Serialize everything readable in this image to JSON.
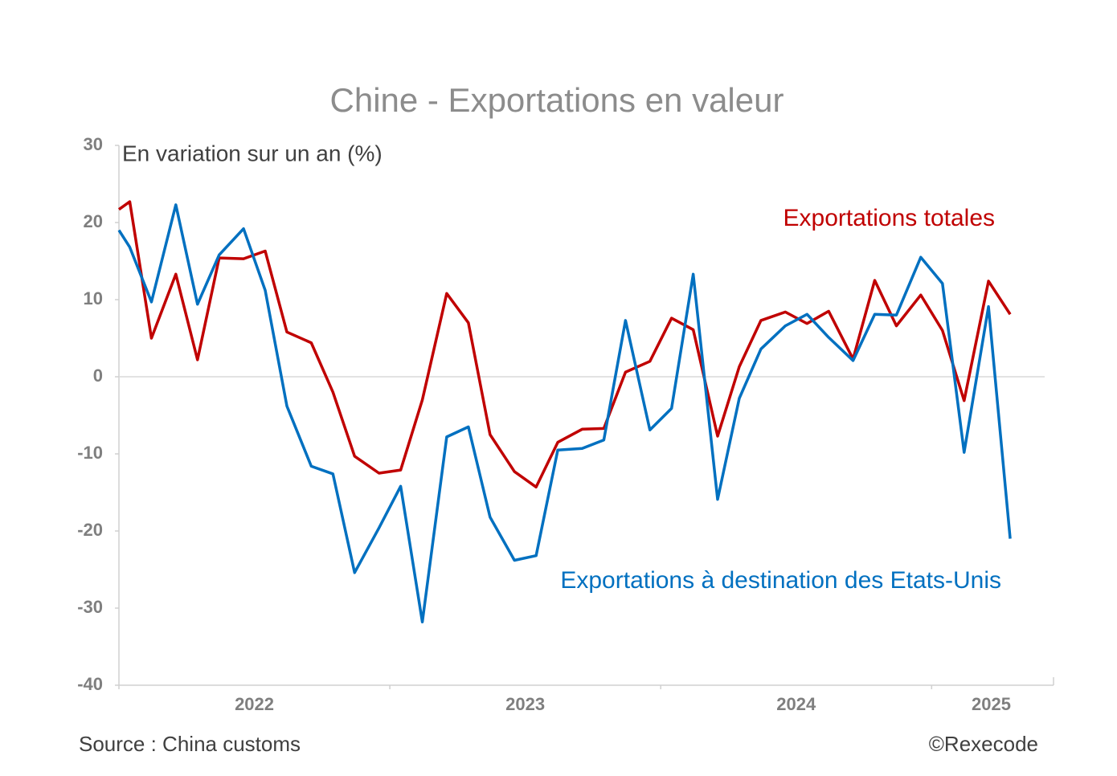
{
  "chart_data": {
    "type": "line",
    "title": "Chine - Exportations en valeur",
    "subtitle": "En variation sur un an (%)",
    "source": "Source : China customs",
    "credit": "©Rexecode",
    "x": [
      2022.0,
      2022.04,
      2022.12,
      2022.21,
      2022.29,
      2022.37,
      2022.46,
      2022.54,
      2022.62,
      2022.71,
      2022.79,
      2022.87,
      2022.96,
      2023.04,
      2023.12,
      2023.21,
      2023.29,
      2023.37,
      2023.46,
      2023.54,
      2023.62,
      2023.71,
      2023.79,
      2023.87,
      2023.96,
      2024.04,
      2024.12,
      2024.21,
      2024.29,
      2024.37,
      2024.46,
      2024.54,
      2024.62,
      2024.71,
      2024.79,
      2024.87,
      2024.96,
      2025.04,
      2025.12,
      2025.21,
      2025.29
    ],
    "series": [
      {
        "name": "Exportations totales",
        "color": "#c00000",
        "values": [
          21.7,
          22.7,
          5,
          13.3,
          2.2,
          15.4,
          15.3,
          16.3,
          5.8,
          4.4,
          -2,
          -10.3,
          -12.5,
          -12.1,
          -3,
          10.8,
          7,
          -7.5,
          -12.3,
          -14.3,
          -8.5,
          -6.8,
          -6.7,
          0.6,
          2,
          7.6,
          6.1,
          -7.7,
          1.3,
          7.3,
          8.4,
          6.9,
          8.5,
          2.3,
          12.5,
          6.6,
          10.6,
          6,
          -3.1,
          12.4,
          8.1
        ]
      },
      {
        "name": "Exportations à destination des Etats-Unis",
        "color": "#0070c0",
        "values": [
          19,
          16.8,
          9.7,
          22.3,
          9.4,
          15.8,
          19.2,
          11.2,
          -3.8,
          -11.6,
          -12.6,
          -25.4,
          -19.6,
          -14.2,
          -31.8,
          -7.8,
          -6.5,
          -18.2,
          -23.8,
          -23.2,
          -9.5,
          -9.3,
          -8.2,
          7.3,
          -6.9,
          -4.1,
          13.3,
          -15.9,
          -2.8,
          3.6,
          6.6,
          8.1,
          5.1,
          2.1,
          8.1,
          8,
          15.5,
          12.1,
          -9.8,
          9.1,
          -21
        ]
      }
    ],
    "xlim": [
      2022,
      2025.45
    ],
    "xticks": [
      2022,
      2023,
      2024,
      2025
    ],
    "xlabels": [
      {
        "value": 2022.5,
        "label": "2022"
      },
      {
        "value": 2023.5,
        "label": "2023"
      },
      {
        "value": 2024.5,
        "label": "2024"
      },
      {
        "value": 2025.22,
        "label": "2025"
      }
    ],
    "ylim": [
      -40,
      30
    ],
    "yticks": [
      -40,
      -30,
      -20,
      -10,
      0,
      10,
      20,
      30
    ]
  }
}
